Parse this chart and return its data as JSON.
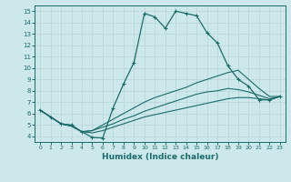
{
  "xlabel": "Humidex (Indice chaleur)",
  "xlim": [
    -0.5,
    23.5
  ],
  "ylim": [
    3.5,
    15.5
  ],
  "xticks": [
    0,
    1,
    2,
    3,
    4,
    5,
    6,
    7,
    8,
    9,
    10,
    11,
    12,
    13,
    14,
    15,
    16,
    17,
    18,
    19,
    20,
    21,
    22,
    23
  ],
  "yticks": [
    4,
    5,
    6,
    7,
    8,
    9,
    10,
    11,
    12,
    13,
    14,
    15
  ],
  "bg_color": "#cce8ea",
  "line_color": "#1a6b6b",
  "grid_color": "#b8d4d6",
  "curve1_x": [
    0,
    1,
    2,
    3,
    4,
    5,
    6,
    7,
    8,
    9,
    10,
    11,
    12,
    13,
    14,
    15,
    16,
    17,
    18,
    19,
    20,
    21,
    22,
    23
  ],
  "curve1_y": [
    6.3,
    5.7,
    5.1,
    5.0,
    4.4,
    3.9,
    3.85,
    6.5,
    8.6,
    10.5,
    14.8,
    14.5,
    13.5,
    15.0,
    14.8,
    14.6,
    13.1,
    12.2,
    10.2,
    9.0,
    8.4,
    7.2,
    7.2,
    7.5
  ],
  "curve2_x": [
    0,
    1,
    2,
    3,
    4,
    5,
    6,
    7,
    8,
    9,
    10,
    11,
    12,
    13,
    14,
    15,
    16,
    17,
    18,
    19,
    20,
    21,
    22,
    23
  ],
  "curve2_y": [
    6.3,
    5.7,
    5.1,
    4.9,
    4.4,
    4.5,
    5.0,
    5.5,
    6.0,
    6.5,
    7.0,
    7.4,
    7.7,
    8.0,
    8.3,
    8.7,
    9.0,
    9.3,
    9.6,
    9.8,
    9.0,
    8.2,
    7.5,
    7.5
  ],
  "curve3_x": [
    0,
    1,
    2,
    3,
    4,
    5,
    6,
    7,
    8,
    9,
    10,
    11,
    12,
    13,
    14,
    15,
    16,
    17,
    18,
    19,
    20,
    21,
    22,
    23
  ],
  "curve3_y": [
    6.3,
    5.7,
    5.1,
    4.9,
    4.4,
    4.5,
    4.8,
    5.1,
    5.5,
    5.8,
    6.2,
    6.5,
    6.8,
    7.1,
    7.4,
    7.7,
    7.9,
    8.0,
    8.2,
    8.1,
    7.9,
    7.6,
    7.3,
    7.5
  ],
  "curve4_x": [
    0,
    1,
    2,
    3,
    4,
    5,
    6,
    7,
    8,
    9,
    10,
    11,
    12,
    13,
    14,
    15,
    16,
    17,
    18,
    19,
    20,
    21,
    22,
    23
  ],
  "curve4_y": [
    6.3,
    5.7,
    5.1,
    4.9,
    4.4,
    4.3,
    4.5,
    4.8,
    5.1,
    5.4,
    5.7,
    5.9,
    6.1,
    6.3,
    6.5,
    6.7,
    6.9,
    7.1,
    7.3,
    7.4,
    7.4,
    7.3,
    7.2,
    7.5
  ]
}
